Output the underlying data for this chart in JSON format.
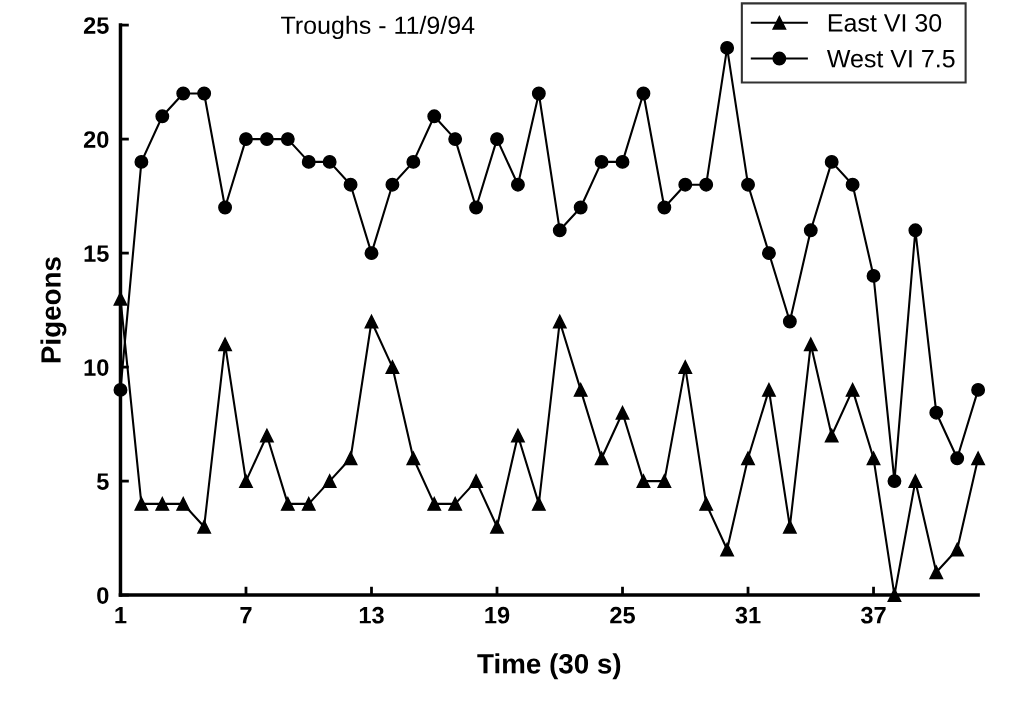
{
  "chart_data": {
    "type": "line",
    "title": "Troughs - 11/9/94",
    "xlabel": "Time (30 s)",
    "ylabel": "Pigeons",
    "x": [
      1,
      2,
      3,
      4,
      5,
      6,
      7,
      8,
      9,
      10,
      11,
      12,
      13,
      14,
      15,
      16,
      17,
      18,
      19,
      20,
      21,
      22,
      23,
      24,
      25,
      26,
      27,
      28,
      29,
      30,
      31,
      32,
      33,
      34,
      35,
      36,
      37,
      38,
      39,
      40,
      41,
      42
    ],
    "series": [
      {
        "name": "East VI 30",
        "color": "#000000",
        "marker": "triangle",
        "values": [
          13,
          4,
          4,
          4,
          3,
          11,
          5,
          7,
          4,
          4,
          5,
          6,
          12,
          10,
          6,
          4,
          4,
          5,
          3,
          7,
          4,
          12,
          9,
          6,
          8,
          5,
          5,
          10,
          4,
          2,
          6,
          9,
          3,
          11,
          7,
          9,
          6,
          0,
          5,
          1,
          2,
          6
        ]
      },
      {
        "name": "West VI 7.5",
        "color": "#000000",
        "marker": "circle",
        "values": [
          9,
          19,
          21,
          22,
          22,
          17,
          20,
          20,
          20,
          19,
          19,
          18,
          15,
          18,
          19,
          21,
          20,
          17,
          20,
          18,
          22,
          16,
          17,
          19,
          19,
          22,
          17,
          18,
          18,
          24,
          18,
          15,
          12,
          16,
          19,
          18,
          14,
          5,
          16,
          8,
          6,
          9
        ]
      }
    ],
    "xlim": [
      1,
      42
    ],
    "xticks": [
      1,
      7,
      13,
      19,
      25,
      31,
      37
    ],
    "ylim": [
      0,
      25
    ],
    "yticks": [
      0,
      5,
      10,
      15,
      20,
      25
    ],
    "legend": "top right",
    "grid": false,
    "line_style": "solid"
  }
}
